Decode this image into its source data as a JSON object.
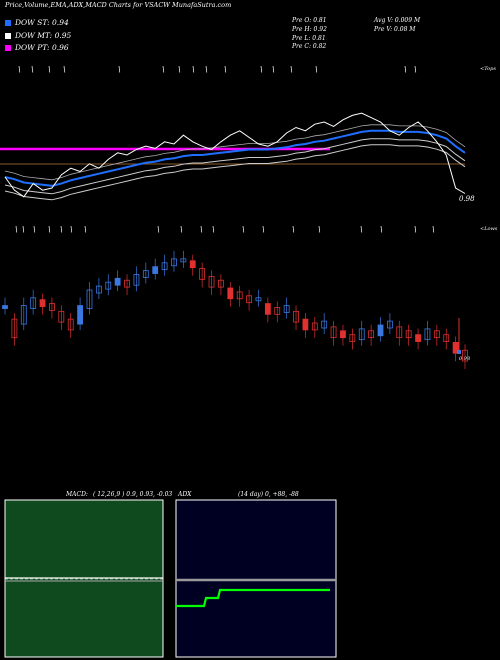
{
  "header": {
    "title": "Price,Volume,EMA,ADX,MACD Charts for VSACW MunafaSutra.com"
  },
  "legend": [
    {
      "label": "DOW ST: 0.94",
      "color": "#1e6fff"
    },
    {
      "label": "DOW MT: 0.95",
      "color": "#ffffff"
    },
    {
      "label": "DOW PT: 0.96",
      "color": "#ff00ff"
    }
  ],
  "stats": {
    "prev_open": "Pre   O: 0.81",
    "prev_high": "Pre   H: 0.92",
    "prev_low": "Pre   L: 0.81",
    "prev_close": "Pre   C: 0.82",
    "avg_volume": "Avg V: 0.009 M",
    "prev_volume": "Pre   V: 0.08 M"
  },
  "labels": {
    "tops": "<Tops",
    "lows": "<Lows",
    "last_price": "0.98",
    "last_price_lower": "0.98"
  },
  "macd": {
    "label": "MACD:",
    "params": "( 12,26,9 ) 0.9, 0.93, -0.03"
  },
  "adx": {
    "label": "ADX",
    "params": "(14  day) 0, +88, -88"
  },
  "colors": {
    "up": "#3a78e0",
    "down": "#e03030",
    "ema_short": "#1e6fff",
    "dow_pt": "#ff00ff",
    "dow_line": "#8a5a2a",
    "macd_bg": "#0e4a1e",
    "adx_bg": "#000022"
  },
  "chart_data": [
    {
      "type": "line",
      "name": "price-ema-panel",
      "x": [
        1,
        2,
        3,
        4,
        5,
        6,
        7,
        8,
        9,
        10,
        11,
        12,
        13,
        14,
        15,
        16,
        17,
        18,
        19,
        20,
        21,
        22,
        23,
        24,
        25,
        26,
        27,
        28,
        29,
        30,
        31,
        32,
        33,
        34,
        35,
        36,
        37,
        38,
        39,
        40,
        41,
        42,
        43,
        44,
        45,
        46,
        47,
        48,
        49,
        50
      ],
      "series": [
        {
          "values": [
            0.93,
            0.918,
            0.912,
            0.924,
            0.918,
            0.92,
            0.932,
            0.938,
            0.935,
            0.942,
            0.938,
            0.946,
            0.952,
            0.95,
            0.955,
            0.958,
            0.956,
            0.962,
            0.96,
            0.968,
            0.962,
            0.958,
            0.955,
            0.962,
            0.968,
            0.972,
            0.966,
            0.96,
            0.958,
            0.962,
            0.97,
            0.975,
            0.972,
            0.978,
            0.98,
            0.976,
            0.982,
            0.986,
            0.988,
            0.984,
            0.98,
            0.972,
            0.968,
            0.975,
            0.98,
            0.972,
            0.962,
            0.95,
            0.92,
            0.915
          ]
        },
        {
          "values": [
            0.93,
            0.928,
            0.925,
            0.924,
            0.923,
            0.922,
            0.924,
            0.927,
            0.929,
            0.931,
            0.933,
            0.935,
            0.937,
            0.939,
            0.941,
            0.943,
            0.944,
            0.946,
            0.947,
            0.949,
            0.95,
            0.95,
            0.951,
            0.952,
            0.953,
            0.954,
            0.955,
            0.955,
            0.955,
            0.956,
            0.957,
            0.959,
            0.96,
            0.962,
            0.963,
            0.965,
            0.967,
            0.969,
            0.971,
            0.972,
            0.972,
            0.972,
            0.971,
            0.971,
            0.971,
            0.97,
            0.968,
            0.965,
            0.958,
            0.952
          ]
        },
        {
          "values": [
            0.955,
            0.955,
            0.955,
            0.955,
            0.955,
            0.955,
            0.955,
            0.955,
            0.955,
            0.955,
            0.955,
            0.955,
            0.955,
            0.955,
            0.955,
            0.955,
            0.955,
            0.955,
            0.955,
            0.955,
            0.955,
            0.955,
            0.955,
            0.955,
            0.955,
            0.955,
            0.955,
            0.955,
            0.955,
            0.955,
            0.955,
            0.955,
            0.955,
            0.955,
            0.955,
            0.955,
            0.955,
            0.955,
            0.955,
            0.955,
            0.955,
            0.955,
            0.955,
            0.955,
            0.955,
            0.955,
            0.955,
            0.955,
            0.955,
            0.955
          ]
        }
      ]
    },
    {
      "type": "bar",
      "name": "candles-panel",
      "x": [
        1,
        2,
        3,
        4,
        5,
        6,
        7,
        8,
        9,
        10,
        11,
        12,
        13,
        14,
        15,
        16,
        17,
        18,
        19,
        20,
        21,
        22,
        23,
        24,
        25,
        26,
        27,
        28,
        29,
        30,
        31,
        32,
        33,
        34,
        35,
        36,
        37,
        38,
        39,
        40,
        41,
        42,
        43,
        44,
        45,
        46,
        47,
        48,
        49,
        50
      ],
      "series": [
        {
          "values": [
            0.9,
            0.86,
            0.9,
            0.92,
            0.91,
            0.9,
            0.88,
            0.86,
            0.9,
            0.94,
            0.95,
            0.96,
            0.97,
            0.96,
            0.98,
            0.99,
            1.0,
            1.01,
            1.02,
            1.02,
            1.01,
            0.99,
            0.97,
            0.96,
            0.94,
            0.93,
            0.92,
            0.92,
            0.9,
            0.89,
            0.9,
            0.88,
            0.86,
            0.85,
            0.86,
            0.84,
            0.83,
            0.82,
            0.84,
            0.83,
            0.85,
            0.86,
            0.84,
            0.83,
            0.82,
            0.84,
            0.83,
            0.82,
            0.8,
            0.78
          ]
        }
      ]
    },
    {
      "type": "line",
      "name": "macd-panel",
      "series": [
        {
          "values": [
            0.9,
            0.9,
            0.9,
            0.9,
            0.9,
            0.9,
            0.9,
            0.9,
            0.9,
            0.9
          ]
        },
        {
          "values": [
            0.93,
            0.93,
            0.93,
            0.93,
            0.93,
            0.93,
            0.93,
            0.93,
            0.93,
            0.93
          ]
        }
      ]
    },
    {
      "type": "line",
      "name": "adx-panel",
      "series": [
        {
          "values": [
            0,
            0,
            0,
            0,
            0,
            0,
            0,
            0,
            0,
            0
          ]
        },
        {
          "values": [
            -88,
            -88,
            -88,
            -60,
            -60,
            88,
            88,
            88,
            88,
            88,
            88,
            88,
            88,
            88,
            88,
            88
          ]
        }
      ]
    }
  ]
}
